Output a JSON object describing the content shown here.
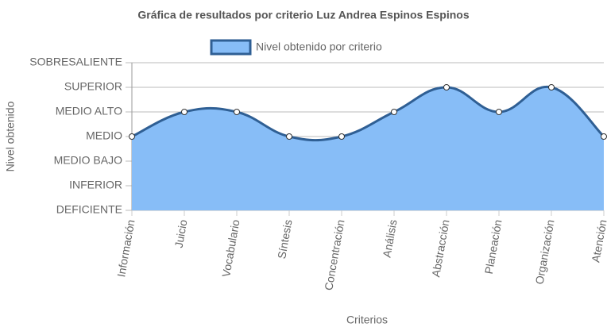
{
  "chart_data": {
    "type": "line",
    "title": "Gráfica de resultados por criterio Luz Andrea Espinos Espinos",
    "x_label": "Criterios",
    "y_label": "Nivel obtenido",
    "categories": [
      "Información",
      "Juicio",
      "Vocabulario",
      "Síntesis",
      "Concentración",
      "Análisis",
      "Abstracción",
      "Planeación",
      "Organización",
      "Atención"
    ],
    "series": [
      {
        "name": "Nivel obtenido por criterio",
        "color": "#2f5f94",
        "fill": "#87bdf7",
        "values": [
          3,
          4,
          4,
          3,
          3,
          4,
          5,
          4,
          5,
          3
        ]
      }
    ],
    "ylim": [
      0,
      6
    ],
    "yticks": [
      {
        "value": 0,
        "label": "DEFICIENTE"
      },
      {
        "value": 1,
        "label": "INFERIOR"
      },
      {
        "value": 2,
        "label": "MEDIO BAJO"
      },
      {
        "value": 3,
        "label": "MEDIO"
      },
      {
        "value": 4,
        "label": "MEDIO ALTO"
      },
      {
        "value": 5,
        "label": "SUPERIOR"
      },
      {
        "value": 6,
        "label": "SOBRESALIENTE"
      }
    ],
    "grid": true,
    "legend": "top"
  }
}
